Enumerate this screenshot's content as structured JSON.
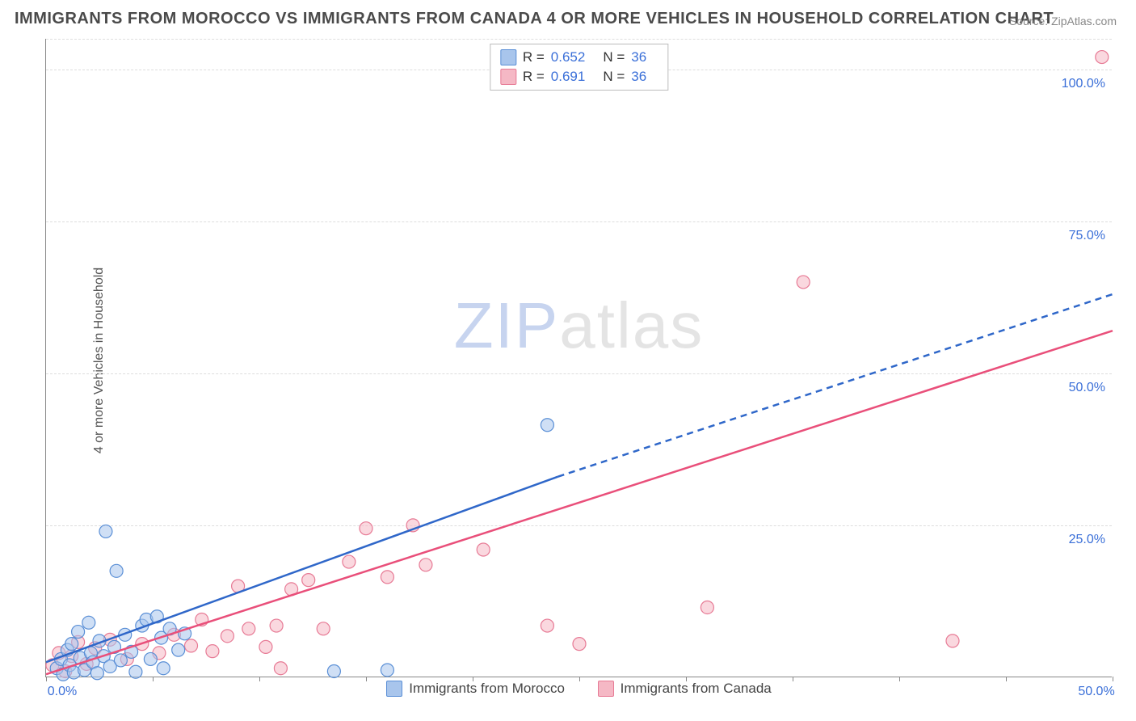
{
  "title": "IMMIGRANTS FROM MOROCCO VS IMMIGRANTS FROM CANADA 4 OR MORE VEHICLES IN HOUSEHOLD CORRELATION CHART",
  "source_label": "Source:",
  "source_value": "ZipAtlas.com",
  "ylabel": "4 or more Vehicles in Household",
  "watermark_z": "ZIP",
  "watermark_rest": "atlas",
  "chart": {
    "type": "scatter-with-regression",
    "xlim": [
      0,
      50
    ],
    "ylim": [
      0,
      105
    ],
    "xtick_positions": [
      0,
      5,
      10,
      15,
      20,
      25,
      30,
      35,
      40,
      45,
      50
    ],
    "xtick_labels": {
      "0": "0.0%",
      "50": "50.0%"
    },
    "ytick_positions": [
      25,
      50,
      75,
      100
    ],
    "ytick_labels": [
      "25.0%",
      "50.0%",
      "75.0%",
      "100.0%"
    ],
    "background_color": "#ffffff",
    "grid_color": "#dddddd",
    "axis_color": "#888888",
    "tick_label_color": "#3a6fd8",
    "series": [
      {
        "name": "Immigrants from Morocco",
        "color_fill": "#a8c5ec",
        "color_stroke": "#5a8fd6",
        "marker_radius": 8,
        "fill_opacity": 0.55,
        "r_value": "0.652",
        "n_value": "36",
        "regression": {
          "solid": {
            "x1": 0,
            "y1": 2.5,
            "x2": 24,
            "y2": 33
          },
          "dashed": {
            "x1": 24,
            "y1": 33,
            "x2": 50,
            "y2": 63
          },
          "stroke": "#2f67c9",
          "width": 2.5
        },
        "points": [
          {
            "x": 0.5,
            "y": 1.5
          },
          {
            "x": 0.7,
            "y": 3.0
          },
          {
            "x": 0.8,
            "y": 0.5
          },
          {
            "x": 1.0,
            "y": 4.5
          },
          {
            "x": 1.1,
            "y": 2.0
          },
          {
            "x": 1.2,
            "y": 5.5
          },
          {
            "x": 1.3,
            "y": 0.8
          },
          {
            "x": 1.5,
            "y": 7.5
          },
          {
            "x": 1.6,
            "y": 3.2
          },
          {
            "x": 1.8,
            "y": 1.2
          },
          {
            "x": 2.0,
            "y": 9.0
          },
          {
            "x": 2.1,
            "y": 4.0
          },
          {
            "x": 2.2,
            "y": 2.5
          },
          {
            "x": 2.4,
            "y": 0.7
          },
          {
            "x": 2.5,
            "y": 6.0
          },
          {
            "x": 2.7,
            "y": 3.5
          },
          {
            "x": 2.8,
            "y": 24.0
          },
          {
            "x": 3.0,
            "y": 1.8
          },
          {
            "x": 3.2,
            "y": 5.0
          },
          {
            "x": 3.3,
            "y": 17.5
          },
          {
            "x": 3.5,
            "y": 2.8
          },
          {
            "x": 3.7,
            "y": 7.0
          },
          {
            "x": 4.0,
            "y": 4.2
          },
          {
            "x": 4.2,
            "y": 0.9
          },
          {
            "x": 4.5,
            "y": 8.5
          },
          {
            "x": 4.7,
            "y": 9.5
          },
          {
            "x": 4.9,
            "y": 3.0
          },
          {
            "x": 5.2,
            "y": 10.0
          },
          {
            "x": 5.4,
            "y": 6.5
          },
          {
            "x": 5.5,
            "y": 1.5
          },
          {
            "x": 5.8,
            "y": 8.0
          },
          {
            "x": 6.2,
            "y": 4.5
          },
          {
            "x": 6.5,
            "y": 7.2
          },
          {
            "x": 13.5,
            "y": 1.0
          },
          {
            "x": 16.0,
            "y": 1.2
          },
          {
            "x": 23.5,
            "y": 41.5
          }
        ]
      },
      {
        "name": "Immigrants from Canada",
        "color_fill": "#f5b8c5",
        "color_stroke": "#e77a95",
        "marker_radius": 8,
        "fill_opacity": 0.55,
        "r_value": "0.691",
        "n_value": "36",
        "regression": {
          "solid": {
            "x1": 0,
            "y1": 0.5,
            "x2": 50,
            "y2": 57
          },
          "dashed": null,
          "stroke": "#e94f7a",
          "width": 2.5
        },
        "points": [
          {
            "x": 0.3,
            "y": 2.0
          },
          {
            "x": 0.6,
            "y": 4.0
          },
          {
            "x": 0.9,
            "y": 1.0
          },
          {
            "x": 1.2,
            "y": 3.5
          },
          {
            "x": 1.5,
            "y": 5.8
          },
          {
            "x": 1.9,
            "y": 2.2
          },
          {
            "x": 2.3,
            "y": 4.8
          },
          {
            "x": 3.0,
            "y": 6.2
          },
          {
            "x": 3.8,
            "y": 3.0
          },
          {
            "x": 4.5,
            "y": 5.5
          },
          {
            "x": 5.3,
            "y": 4.0
          },
          {
            "x": 6.0,
            "y": 7.0
          },
          {
            "x": 6.8,
            "y": 5.2
          },
          {
            "x": 7.3,
            "y": 9.5
          },
          {
            "x": 7.8,
            "y": 4.3
          },
          {
            "x": 8.5,
            "y": 6.8
          },
          {
            "x": 9.0,
            "y": 15.0
          },
          {
            "x": 9.5,
            "y": 8.0
          },
          {
            "x": 10.3,
            "y": 5.0
          },
          {
            "x": 10.8,
            "y": 8.5
          },
          {
            "x": 11.0,
            "y": 1.5
          },
          {
            "x": 11.5,
            "y": 14.5
          },
          {
            "x": 12.3,
            "y": 16.0
          },
          {
            "x": 13.0,
            "y": 8.0
          },
          {
            "x": 14.2,
            "y": 19.0
          },
          {
            "x": 15.0,
            "y": 24.5
          },
          {
            "x": 16.0,
            "y": 16.5
          },
          {
            "x": 17.2,
            "y": 25.0
          },
          {
            "x": 17.8,
            "y": 18.5
          },
          {
            "x": 20.5,
            "y": 21.0
          },
          {
            "x": 23.5,
            "y": 8.5
          },
          {
            "x": 25.0,
            "y": 5.5
          },
          {
            "x": 31.0,
            "y": 11.5
          },
          {
            "x": 35.5,
            "y": 65.0
          },
          {
            "x": 42.5,
            "y": 6.0
          },
          {
            "x": 49.5,
            "y": 102.0
          }
        ]
      }
    ]
  },
  "legend_bottom": [
    {
      "label": "Immigrants from Morocco",
      "fill": "#a8c5ec",
      "stroke": "#5a8fd6"
    },
    {
      "label": "Immigrants from Canada",
      "fill": "#f5b8c5",
      "stroke": "#e77a95"
    }
  ]
}
